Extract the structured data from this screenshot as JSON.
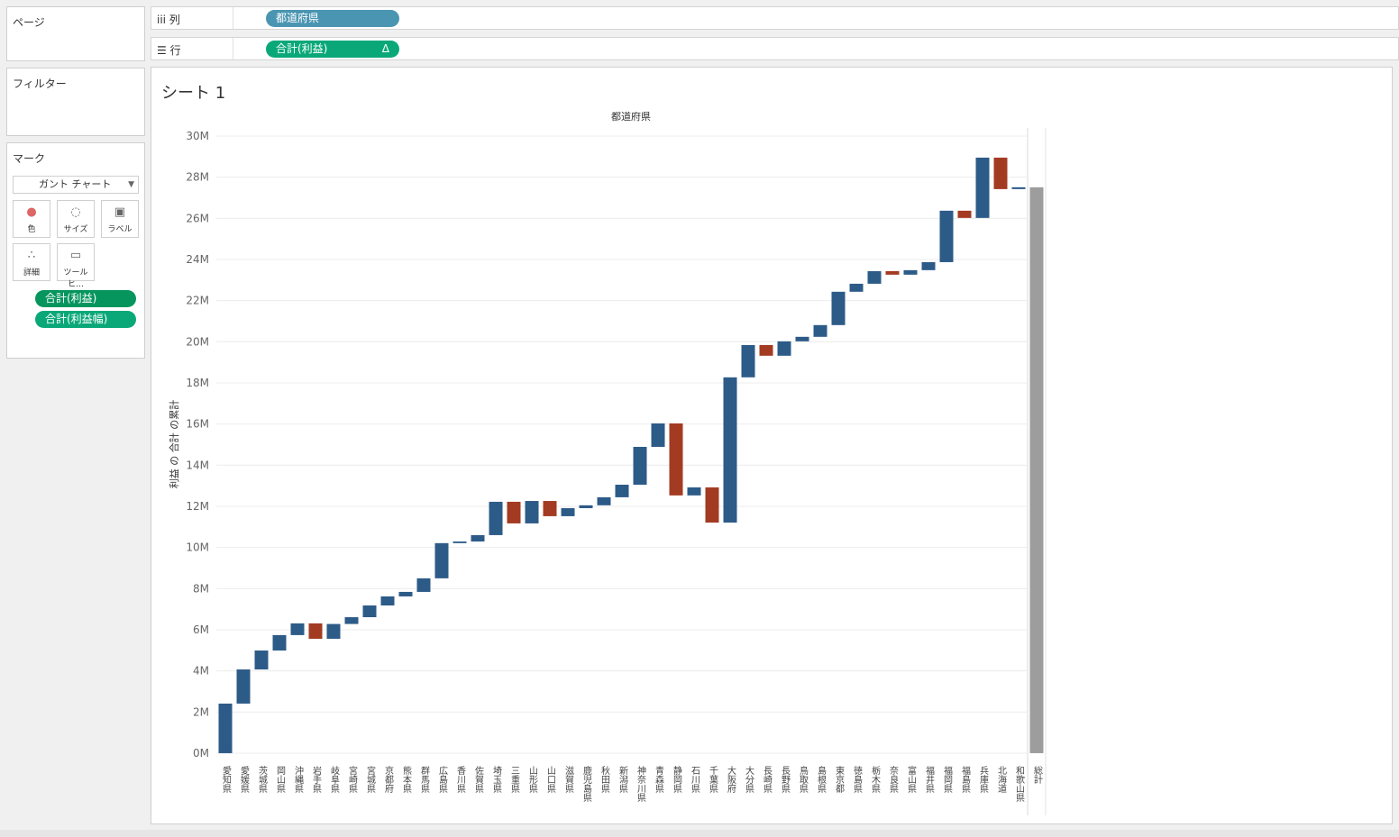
{
  "ui": {
    "pages_label": "ページ",
    "filters_label": "フィルター",
    "marks_label": "マーク",
    "mark_type": "ガント チャート",
    "mark_buttons": [
      "色",
      "サイズ",
      "ラベル",
      "詳細",
      "ツールヒ…"
    ],
    "mark_fields": [
      "合計(利益)",
      "合計(利益幅)"
    ],
    "columns_label": "列",
    "columns_field": "都道府県",
    "rows_label": "行",
    "rows_field": "合計(利益)",
    "rows_field_icon": "Δ",
    "sheet_title": "シート 1"
  },
  "chart_data": {
    "type": "waterfall",
    "x_label": "都道府県",
    "y_label": "利益 の 合計 の累計",
    "categories": [
      "愛知県",
      "愛媛県",
      "茨城県",
      "岡山県",
      "沖縄県",
      "岩手県",
      "岐阜県",
      "宮崎県",
      "宮城県",
      "京都府",
      "熊本県",
      "群馬県",
      "広島県",
      "香川県",
      "佐賀県",
      "埼玉県",
      "三重県",
      "山形県",
      "山口県",
      "滋賀県",
      "鹿児島県",
      "秋田県",
      "新潟県",
      "神奈川県",
      "青森県",
      "静岡県",
      "石川県",
      "千葉県",
      "大阪府",
      "大分県",
      "長崎県",
      "長野県",
      "鳥取県",
      "島根県",
      "東京都",
      "徳島県",
      "栃木県",
      "奈良県",
      "富山県",
      "福井県",
      "福岡県",
      "福島県",
      "兵庫県",
      "北海道",
      "和歌山県"
    ],
    "values": [
      2.41,
      1.66,
      0.92,
      0.75,
      0.57,
      -0.75,
      0.72,
      0.33,
      0.57,
      0.44,
      0.22,
      0.66,
      1.71,
      0.08,
      0.31,
      1.62,
      -1.05,
      1.09,
      -0.74,
      0.39,
      0.14,
      0.39,
      0.61,
      1.84,
      1.14,
      -3.5,
      0.39,
      -1.71,
      7.06,
      1.57,
      -0.52,
      0.7,
      0.22,
      0.57,
      1.62,
      0.39,
      0.61,
      -0.17,
      0.22,
      0.39,
      2.5,
      -0.35,
      2.93,
      -1.53,
      0.09
    ],
    "total_label": "総計",
    "total_value": 27.51,
    "positive_color": "#2d5b88",
    "negative_color": "#a33b22",
    "total_color": "#9d9d9d",
    "ylim": [
      -0.44,
      30.35
    ],
    "yticks": [
      {
        "value": 0,
        "label": "0M"
      },
      {
        "value": 2,
        "label": "2M"
      },
      {
        "value": 4,
        "label": "4M"
      },
      {
        "value": 6,
        "label": "6M"
      },
      {
        "value": 8,
        "label": "8M"
      },
      {
        "value": 10,
        "label": "10M"
      },
      {
        "value": 12,
        "label": "12M"
      },
      {
        "value": 14,
        "label": "14M"
      },
      {
        "value": 16,
        "label": "16M"
      },
      {
        "value": 18,
        "label": "18M"
      },
      {
        "value": 20,
        "label": "20M"
      },
      {
        "value": 22,
        "label": "22M"
      },
      {
        "value": 24,
        "label": "24M"
      },
      {
        "value": 26,
        "label": "26M"
      },
      {
        "value": 28,
        "label": "28M"
      },
      {
        "value": 30,
        "label": "30M"
      }
    ],
    "grid": true
  }
}
